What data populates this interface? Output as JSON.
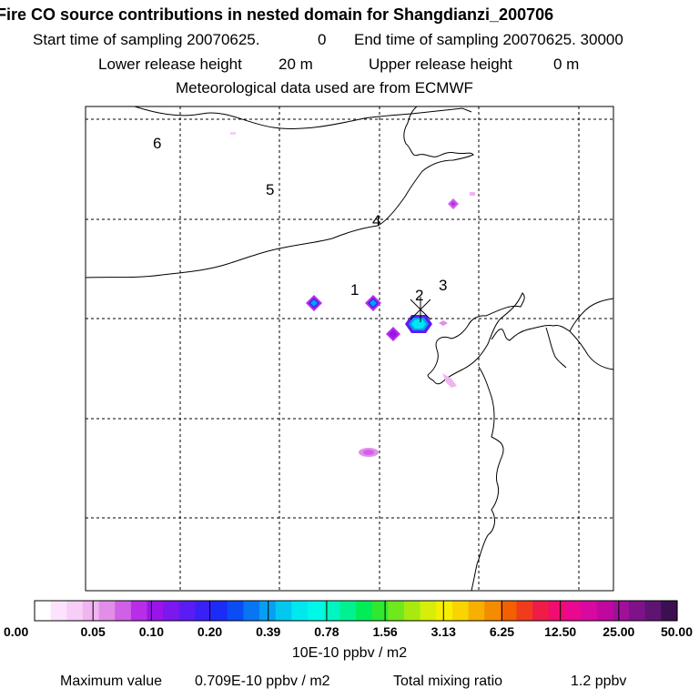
{
  "header": {
    "title": "Fire CO source contributions in nested domain for Shangdianzi_200706",
    "start_label": "Start time of sampling 20070625.",
    "start_value": "0",
    "end_label": "End time of sampling 20070625. 30000",
    "lower_label": "Lower release height",
    "lower_value": "20 m",
    "upper_label": "Upper release height",
    "upper_value": "0 m",
    "met_text": "Meteorological data used are from ECMWF"
  },
  "map": {
    "site_labels": [
      "1",
      "2",
      "3",
      "4",
      "5",
      "6"
    ],
    "receptor_marker": "sampling-site-cross"
  },
  "colorbar": {
    "tick_labels": [
      "0.00",
      "0.05",
      "0.10",
      "0.20",
      "0.39",
      "0.78",
      "1.56",
      "3.13",
      "6.25",
      "12.50",
      "25.00",
      "50.00"
    ],
    "unit": "10E-10 ppbv / m2",
    "colors": [
      "#ffffff",
      "#fbe4fb",
      "#f6cef6",
      "#f0b4f0",
      "#e28ee8",
      "#d060e6",
      "#b82ee8",
      "#9a14ea",
      "#7a18ee",
      "#5a1cf4",
      "#3820f6",
      "#1c2cf8",
      "#0c4cf6",
      "#0876f4",
      "#05a0f2",
      "#02c8f0",
      "#00e8ee",
      "#00f8e8",
      "#00f6c0",
      "#00f290",
      "#00ec58",
      "#30e830",
      "#70e81c",
      "#a8ea10",
      "#d6ee08",
      "#f6f000",
      "#fad400",
      "#f8b000",
      "#f48c00",
      "#f26000",
      "#f03c1c",
      "#f01c48",
      "#f00c70",
      "#ea0890",
      "#d808a0",
      "#c008a0",
      "#a0109a",
      "#7e1288",
      "#5e1470",
      "#3c1050"
    ]
  },
  "footer": {
    "max_label": "Maximum value",
    "max_value": "0.709E-10 ppbv / m2",
    "total_label": "Total mixing ratio",
    "total_value": "1.2 ppbv"
  }
}
